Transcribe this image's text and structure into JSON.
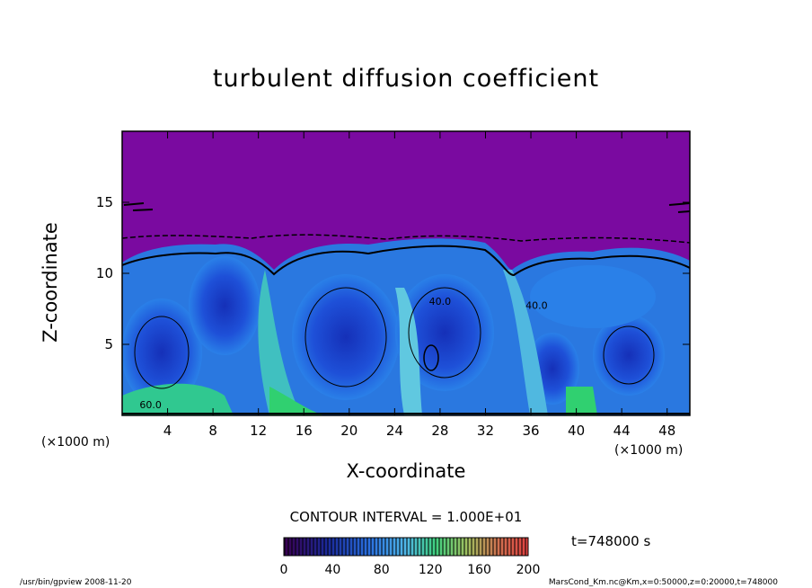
{
  "chart_data": {
    "type": "heatmap",
    "title": "turbulent diffusion coefficient",
    "xlabel": "X-coordinate",
    "ylabel": "Z-coordinate",
    "x_unit": "(×1000 m)",
    "y_unit": "(×1000 m)",
    "x_ticks": [
      4,
      8,
      12,
      16,
      20,
      24,
      28,
      32,
      36,
      40,
      44,
      48
    ],
    "y_ticks": [
      5,
      10,
      15
    ],
    "xlim": [
      0,
      50
    ],
    "ylim": [
      0,
      20
    ],
    "contour_labels": [
      {
        "x": 2.5,
        "z": 0.5,
        "text": "60.0"
      },
      {
        "x": 28,
        "z": 7.8,
        "text": "40.0"
      },
      {
        "x": 36.5,
        "z": 7.5,
        "text": "40.0"
      }
    ],
    "colorbar": {
      "ticks": [
        0,
        40,
        80,
        120,
        160,
        200
      ],
      "range": [
        0,
        200
      ]
    },
    "contour_interval_text": "CONTOUR INTERVAL = 1.000E+01",
    "time_text": "t=748000 s"
  },
  "footer": {
    "left": "/usr/bin/gpview   2008-11-20",
    "right": "MarsCond_Km.nc@Km,x=0:50000,z=0:20000,t=748000"
  },
  "colors": {
    "low_region": "#7a0aa0",
    "mid_blue": "#1e5ad8",
    "light_blue": "#3aa0e8",
    "green": "#30d070"
  }
}
